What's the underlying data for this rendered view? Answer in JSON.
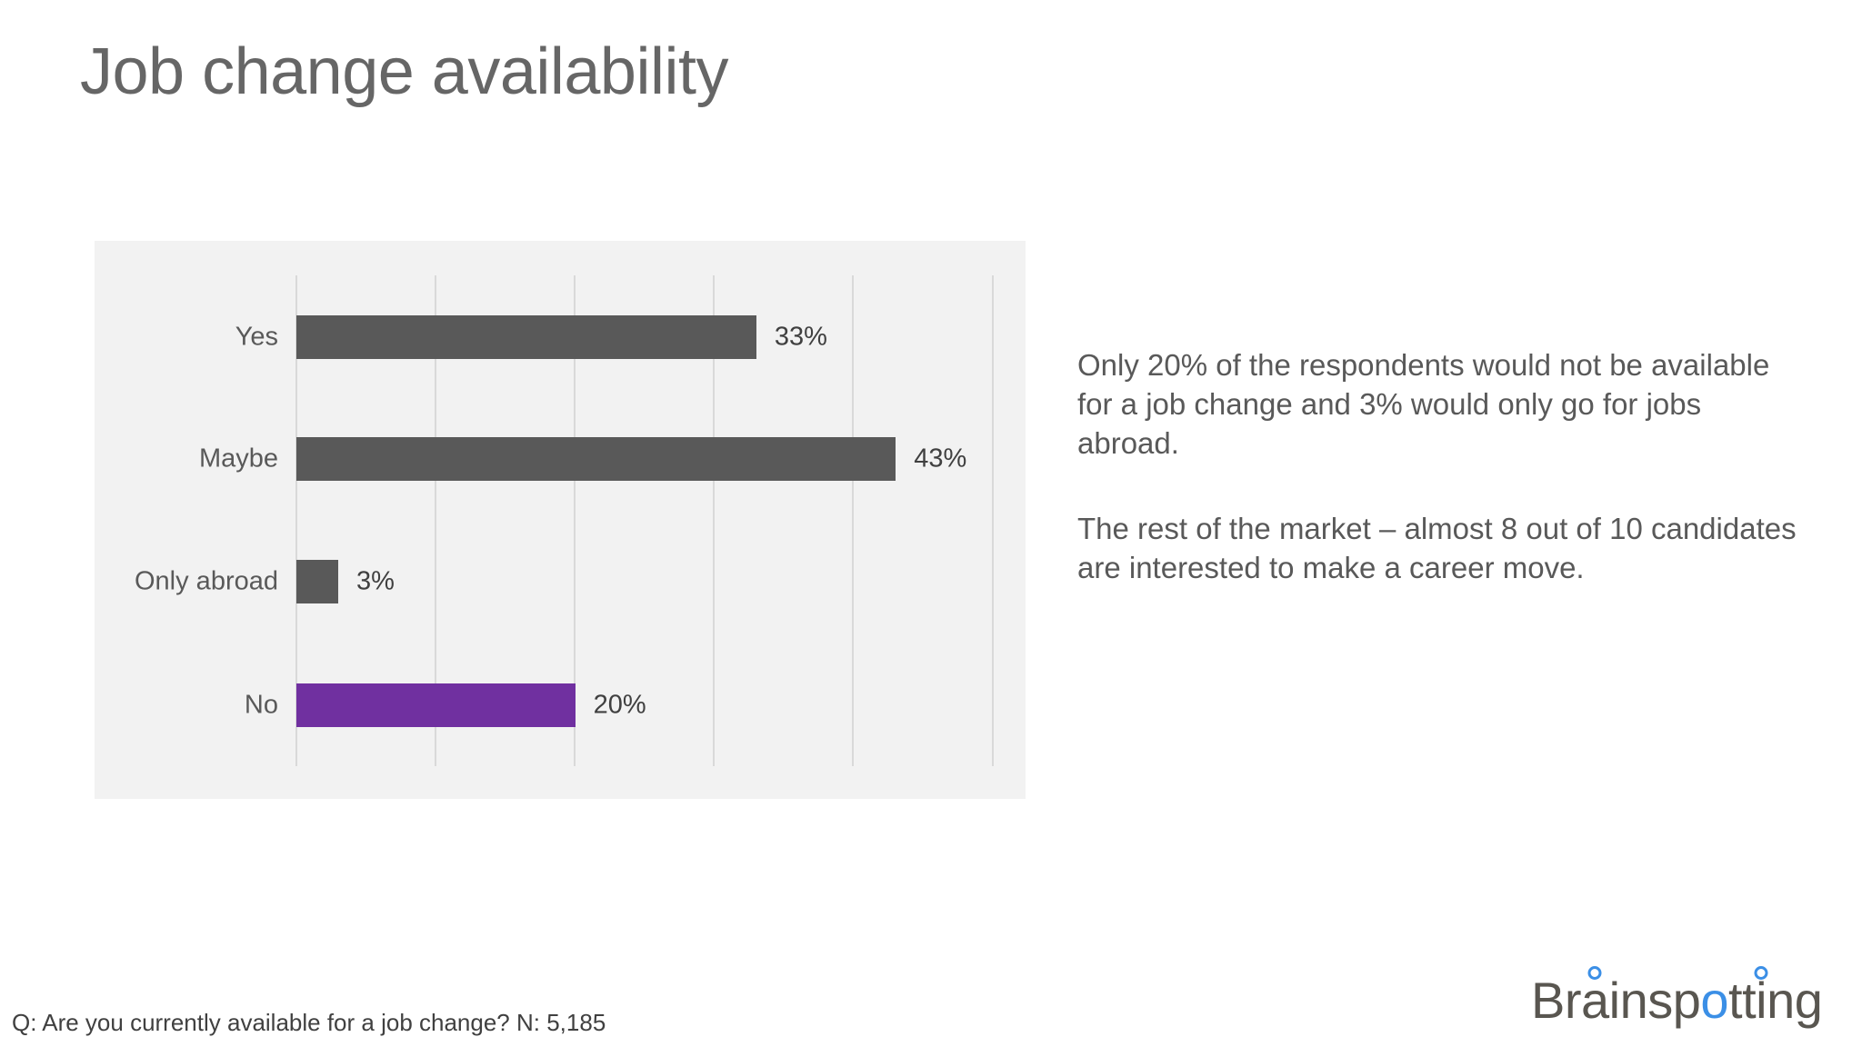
{
  "slide": {
    "title": "Job change availability",
    "notes": [
      "Only 20% of the respondents would not be available for a job change and 3% would only go for jobs abroad.",
      "The rest of the market – almost 8 out of 10 candidates are interested to make a career move."
    ],
    "footnote": "Q: Are you currently available for a job change? N: 5,185",
    "logo": {
      "parts": [
        "Br",
        "a",
        "insp",
        "o",
        "tt",
        "i",
        "ng"
      ],
      "text": "Brainspotting",
      "accent_color": "#3b8fe6"
    }
  },
  "chart_data": {
    "type": "bar",
    "orientation": "horizontal",
    "title": "",
    "xlabel": "",
    "ylabel": "",
    "categories": [
      "Yes",
      "Maybe",
      "Only abroad",
      "No"
    ],
    "values": [
      33,
      43,
      3,
      20
    ],
    "labels": [
      "33%",
      "43%",
      "3%",
      "20%"
    ],
    "colors": [
      "#595959",
      "#595959",
      "#595959",
      "#7030a0"
    ],
    "xlim": [
      0,
      50
    ],
    "gridlines": [
      0,
      10,
      20,
      30,
      40,
      50
    ],
    "grid": true,
    "legend": "none",
    "background": "#f2f2f2"
  }
}
